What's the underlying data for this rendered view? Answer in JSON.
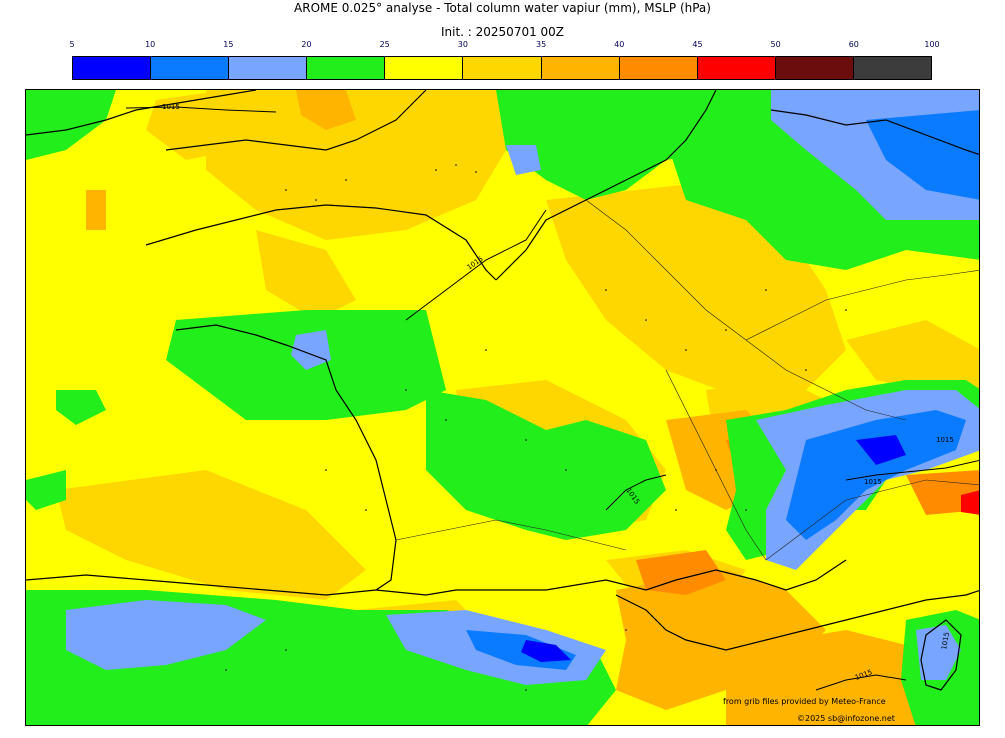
{
  "title": "AROME 0.025° analyse - Total column water vapiur (mm), MSLP (hPa)",
  "subtitle": "Init. : 20250701 00Z",
  "colorbar": {
    "ticks": [
      "5",
      "10",
      "15",
      "20",
      "25",
      "30",
      "35",
      "40",
      "45",
      "50",
      "60",
      "100"
    ],
    "colors": [
      "#0000ff",
      "#0a7bff",
      "#78a5ff",
      "#21ee1b",
      "#ffff00",
      "#ffd700",
      "#ffb400",
      "#ff8c00",
      "#ff0000",
      "#6b0d0d",
      "#3c3c3c"
    ]
  },
  "isobars": {
    "labels": [
      "1015",
      "1015",
      "1015",
      "1015",
      "1015",
      "1015",
      "1015"
    ]
  },
  "credits": {
    "line1": "from grib files provided by Meteo-France",
    "line2": "©2025 sb@infozone.net"
  }
}
